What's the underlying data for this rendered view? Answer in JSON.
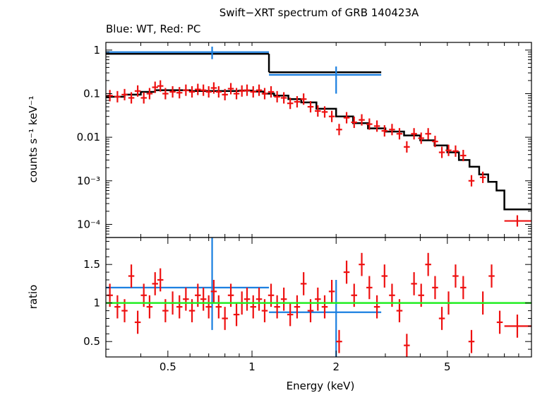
{
  "colors": {
    "wt": "#1a7fe0",
    "pc": "#ee1111",
    "model": "#000000",
    "unity": "#22ee22",
    "axis": "#000000"
  },
  "chart_data": [
    {
      "type": "scatter",
      "panel": "spectrum",
      "title": "Swift−XRT spectrum of GRB 140423A",
      "subtitle": "Blue: WT, Red: PC",
      "ylabel": "counts s⁻¹ keV⁻¹",
      "xlabel": "",
      "xscale": "log",
      "yscale": "log",
      "xlim": [
        0.3,
        10
      ],
      "ylim": [
        5e-05,
        1.5
      ],
      "yticks": [
        {
          "value": 1,
          "label": "1"
        },
        {
          "value": 0.1,
          "label": "0.1"
        },
        {
          "value": 0.01,
          "label": "0.01"
        },
        {
          "value": 0.001,
          "label": "10⁻³"
        },
        {
          "value": 0.0001,
          "label": "10⁻⁴"
        }
      ],
      "series": [
        {
          "name": "WT",
          "color_key": "wt",
          "points": [
            {
              "x": 0.72,
              "xlo": 0.3,
              "xhi": 1.15,
              "y": 0.9,
              "ylo": 0.62,
              "yhi": 1.2
            },
            {
              "x": 2.0,
              "xlo": 1.15,
              "xhi": 2.9,
              "y": 0.27,
              "ylo": 0.1,
              "yhi": 0.42
            }
          ]
        },
        {
          "name": "PC",
          "color_key": "pc",
          "points": [
            {
              "x": 0.31,
              "y": 0.09
            },
            {
              "x": 0.33,
              "y": 0.085
            },
            {
              "x": 0.35,
              "y": 0.095
            },
            {
              "x": 0.37,
              "y": 0.08
            },
            {
              "x": 0.39,
              "y": 0.115
            },
            {
              "x": 0.41,
              "y": 0.08
            },
            {
              "x": 0.43,
              "y": 0.1
            },
            {
              "x": 0.45,
              "y": 0.14
            },
            {
              "x": 0.47,
              "y": 0.15
            },
            {
              "x": 0.49,
              "y": 0.1
            },
            {
              "x": 0.52,
              "y": 0.11
            },
            {
              "x": 0.55,
              "y": 0.105
            },
            {
              "x": 0.58,
              "y": 0.12
            },
            {
              "x": 0.61,
              "y": 0.11
            },
            {
              "x": 0.64,
              "y": 0.125
            },
            {
              "x": 0.67,
              "y": 0.12
            },
            {
              "x": 0.7,
              "y": 0.11
            },
            {
              "x": 0.73,
              "y": 0.135
            },
            {
              "x": 0.76,
              "y": 0.11
            },
            {
              "x": 0.8,
              "y": 0.095
            },
            {
              "x": 0.84,
              "y": 0.13
            },
            {
              "x": 0.88,
              "y": 0.1
            },
            {
              "x": 0.92,
              "y": 0.115
            },
            {
              "x": 0.96,
              "y": 0.12
            },
            {
              "x": 1.01,
              "y": 0.11
            },
            {
              "x": 1.06,
              "y": 0.12
            },
            {
              "x": 1.11,
              "y": 0.1
            },
            {
              "x": 1.17,
              "y": 0.11
            },
            {
              "x": 1.23,
              "y": 0.085
            },
            {
              "x": 1.3,
              "y": 0.08
            },
            {
              "x": 1.37,
              "y": 0.06
            },
            {
              "x": 1.45,
              "y": 0.065
            },
            {
              "x": 1.53,
              "y": 0.075
            },
            {
              "x": 1.62,
              "y": 0.05
            },
            {
              "x": 1.72,
              "y": 0.04
            },
            {
              "x": 1.82,
              "y": 0.038
            },
            {
              "x": 1.93,
              "y": 0.03
            },
            {
              "x": 2.05,
              "y": 0.015
            },
            {
              "x": 2.18,
              "y": 0.028
            },
            {
              "x": 2.32,
              "y": 0.022
            },
            {
              "x": 2.47,
              "y": 0.025
            },
            {
              "x": 2.63,
              "y": 0.02
            },
            {
              "x": 2.8,
              "y": 0.018
            },
            {
              "x": 2.98,
              "y": 0.014
            },
            {
              "x": 3.17,
              "y": 0.015
            },
            {
              "x": 3.37,
              "y": 0.012
            },
            {
              "x": 3.58,
              "y": 0.006
            },
            {
              "x": 3.8,
              "y": 0.012
            },
            {
              "x": 4.03,
              "y": 0.0095
            },
            {
              "x": 4.27,
              "y": 0.012
            },
            {
              "x": 4.52,
              "y": 0.008
            },
            {
              "x": 4.78,
              "y": 0.0045
            },
            {
              "x": 5.05,
              "y": 0.005
            },
            {
              "x": 5.35,
              "y": 0.0048
            },
            {
              "x": 5.7,
              "y": 0.0038
            },
            {
              "x": 6.1,
              "y": 0.001
            },
            {
              "x": 6.7,
              "y": 0.0012
            },
            {
              "x": 8.9,
              "xlo": 8.0,
              "xhi": 10.0,
              "y": 0.00012
            }
          ]
        },
        {
          "name": "Model",
          "color_key": "model",
          "steps": [
            {
              "x0": 0.3,
              "x1": 1.15,
              "y": 0.82
            },
            {
              "x0": 1.15,
              "x1": 2.9,
              "y": 0.31
            }
          ],
          "curve": [
            {
              "x": 0.3,
              "y": 0.085
            },
            {
              "x": 0.35,
              "y": 0.095
            },
            {
              "x": 0.4,
              "y": 0.11
            },
            {
              "x": 0.45,
              "y": 0.12
            },
            {
              "x": 0.5,
              "y": 0.12
            },
            {
              "x": 0.6,
              "y": 0.115
            },
            {
              "x": 0.7,
              "y": 0.115
            },
            {
              "x": 0.8,
              "y": 0.115
            },
            {
              "x": 0.9,
              "y": 0.118
            },
            {
              "x": 1.0,
              "y": 0.112
            },
            {
              "x": 1.1,
              "y": 0.1
            },
            {
              "x": 1.2,
              "y": 0.09
            },
            {
              "x": 1.35,
              "y": 0.075
            },
            {
              "x": 1.5,
              "y": 0.063
            },
            {
              "x": 1.7,
              "y": 0.045
            },
            {
              "x": 2.0,
              "y": 0.03
            },
            {
              "x": 2.3,
              "y": 0.021
            },
            {
              "x": 2.6,
              "y": 0.016
            },
            {
              "x": 3.0,
              "y": 0.0135
            },
            {
              "x": 3.5,
              "y": 0.011
            },
            {
              "x": 4.0,
              "y": 0.0085
            },
            {
              "x": 4.5,
              "y": 0.0065
            },
            {
              "x": 5.0,
              "y": 0.0045
            },
            {
              "x": 5.5,
              "y": 0.003
            },
            {
              "x": 6.0,
              "y": 0.0021
            },
            {
              "x": 6.5,
              "y": 0.0014
            },
            {
              "x": 7.0,
              "y": 0.00095
            },
            {
              "x": 7.5,
              "y": 0.0006
            },
            {
              "x": 8.0,
              "y": 0.0004
            },
            {
              "x": 8.0,
              "y": 0.00022
            },
            {
              "x": 10.0,
              "y": 0.00022
            }
          ]
        }
      ]
    },
    {
      "type": "scatter",
      "panel": "ratio",
      "xlabel": "Energy (keV)",
      "ylabel": "ratio",
      "xscale": "log",
      "yscale": "linear",
      "xlim": [
        0.3,
        10
      ],
      "ylim": [
        0.3,
        1.85
      ],
      "xticks": [
        {
          "value": 0.5,
          "label": "0.5"
        },
        {
          "value": 1,
          "label": "1"
        },
        {
          "value": 2,
          "label": "2"
        },
        {
          "value": 5,
          "label": "5"
        }
      ],
      "yticks": [
        {
          "value": 0.5,
          "label": "0.5"
        },
        {
          "value": 1,
          "label": "1"
        },
        {
          "value": 1.5,
          "label": "1.5"
        }
      ],
      "reference_line": 1.0,
      "series": [
        {
          "name": "WT",
          "color_key": "wt",
          "points": [
            {
              "x": 0.72,
              "xlo": 0.3,
              "xhi": 1.15,
              "y": 1.2,
              "ylo": 0.65,
              "yhi": 1.85
            },
            {
              "x": 2.0,
              "xlo": 1.15,
              "xhi": 2.9,
              "y": 0.88,
              "ylo": 0.3,
              "yhi": 1.3
            }
          ]
        },
        {
          "name": "PC",
          "color_key": "pc",
          "points": [
            {
              "x": 0.31,
              "y": 1.1
            },
            {
              "x": 0.33,
              "y": 0.95
            },
            {
              "x": 0.35,
              "y": 0.9
            },
            {
              "x": 0.37,
              "y": 1.35
            },
            {
              "x": 0.39,
              "y": 0.75
            },
            {
              "x": 0.41,
              "y": 1.1
            },
            {
              "x": 0.43,
              "y": 0.95
            },
            {
              "x": 0.45,
              "y": 1.25
            },
            {
              "x": 0.47,
              "y": 1.3
            },
            {
              "x": 0.49,
              "y": 0.9
            },
            {
              "x": 0.52,
              "y": 1.0
            },
            {
              "x": 0.55,
              "y": 0.95
            },
            {
              "x": 0.58,
              "y": 1.05
            },
            {
              "x": 0.61,
              "y": 0.9
            },
            {
              "x": 0.64,
              "y": 1.1
            },
            {
              "x": 0.67,
              "y": 1.05
            },
            {
              "x": 0.7,
              "y": 0.95
            },
            {
              "x": 0.73,
              "y": 1.15
            },
            {
              "x": 0.76,
              "y": 0.95
            },
            {
              "x": 0.8,
              "y": 0.8
            },
            {
              "x": 0.84,
              "y": 1.1
            },
            {
              "x": 0.88,
              "y": 0.85
            },
            {
              "x": 0.92,
              "y": 1.0
            },
            {
              "x": 0.96,
              "y": 1.05
            },
            {
              "x": 1.01,
              "y": 0.95
            },
            {
              "x": 1.06,
              "y": 1.05
            },
            {
              "x": 1.11,
              "y": 0.9
            },
            {
              "x": 1.17,
              "y": 1.1
            },
            {
              "x": 1.23,
              "y": 0.95
            },
            {
              "x": 1.3,
              "y": 1.05
            },
            {
              "x": 1.37,
              "y": 0.85
            },
            {
              "x": 1.45,
              "y": 0.95
            },
            {
              "x": 1.53,
              "y": 1.25
            },
            {
              "x": 1.62,
              "y": 0.9
            },
            {
              "x": 1.72,
              "y": 1.05
            },
            {
              "x": 1.82,
              "y": 0.95
            },
            {
              "x": 1.93,
              "y": 1.15
            },
            {
              "x": 2.05,
              "y": 0.5
            },
            {
              "x": 2.18,
              "y": 1.4
            },
            {
              "x": 2.32,
              "y": 1.1
            },
            {
              "x": 2.47,
              "y": 1.5
            },
            {
              "x": 2.63,
              "y": 1.2
            },
            {
              "x": 2.8,
              "y": 0.95
            },
            {
              "x": 2.98,
              "y": 1.35
            },
            {
              "x": 3.17,
              "y": 1.1
            },
            {
              "x": 3.37,
              "y": 0.9
            },
            {
              "x": 3.58,
              "y": 0.45
            },
            {
              "x": 3.8,
              "y": 1.25
            },
            {
              "x": 4.03,
              "y": 1.1
            },
            {
              "x": 4.27,
              "y": 1.5
            },
            {
              "x": 4.52,
              "y": 1.2
            },
            {
              "x": 4.78,
              "y": 0.8
            },
            {
              "x": 5.05,
              "y": 1.0
            },
            {
              "x": 5.35,
              "y": 1.35
            },
            {
              "x": 5.7,
              "y": 1.2
            },
            {
              "x": 6.1,
              "y": 0.5
            },
            {
              "x": 6.7,
              "y": 1.0
            },
            {
              "x": 7.2,
              "y": 1.35
            },
            {
              "x": 7.7,
              "y": 0.75
            },
            {
              "x": 8.9,
              "xlo": 8.0,
              "xhi": 10.0,
              "y": 0.7
            }
          ]
        }
      ]
    }
  ]
}
